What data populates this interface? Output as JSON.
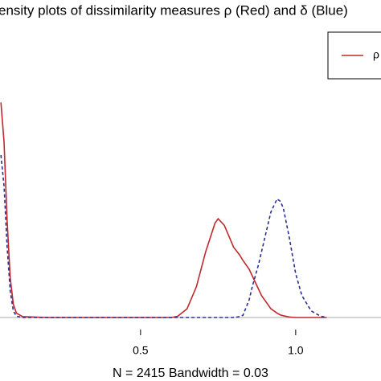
{
  "chart_data": {
    "type": "line",
    "title": "ensity plots of dissimilarity measures ρ (Red) and δ (Blue)",
    "x_label": "N = 2415   Bandwidth = 0.03",
    "x": [
      0.05,
      0.06,
      0.07,
      0.08,
      0.09,
      0.1,
      0.12,
      0.2,
      0.4,
      0.6,
      0.62,
      0.65,
      0.68,
      0.71,
      0.74,
      0.75,
      0.77,
      0.8,
      0.82,
      0.83,
      0.85,
      0.86,
      0.88,
      0.89,
      0.9,
      0.92,
      0.94,
      0.95,
      0.96,
      0.98,
      1.0,
      1.02,
      1.05,
      1.08,
      1.1
    ],
    "series": [
      {
        "name": "ρ",
        "color": "#c0282d",
        "dash": false,
        "values": [
          4.9,
          4.0,
          2.2,
          0.9,
          0.3,
          0.1,
          0.02,
          0,
          0,
          0,
          0.03,
          0.2,
          0.7,
          1.5,
          2.15,
          2.25,
          2.1,
          1.6,
          1.42,
          1.3,
          1.1,
          0.95,
          0.65,
          0.5,
          0.4,
          0.2,
          0.1,
          0.06,
          0.04,
          0.01,
          0,
          0,
          0,
          0,
          0
        ]
      },
      {
        "color": "#2b2f8f",
        "dash": true,
        "values": [
          3.7,
          3.0,
          1.6,
          0.6,
          0.15,
          0.03,
          0,
          0,
          0,
          0,
          0,
          0,
          0,
          0,
          0,
          0,
          0,
          0,
          0.02,
          0.05,
          0.4,
          0.7,
          1.2,
          1.5,
          1.8,
          2.4,
          2.7,
          2.65,
          2.5,
          1.8,
          1.0,
          0.5,
          0.15,
          0.03,
          0
        ]
      }
    ],
    "xlim": [
      0.047,
      1.275
    ],
    "xticks": [
      0.5,
      {
        "value": 1,
        "label": "1.0"
      }
    ],
    "ylim": [
      0,
      6.5
    ]
  }
}
